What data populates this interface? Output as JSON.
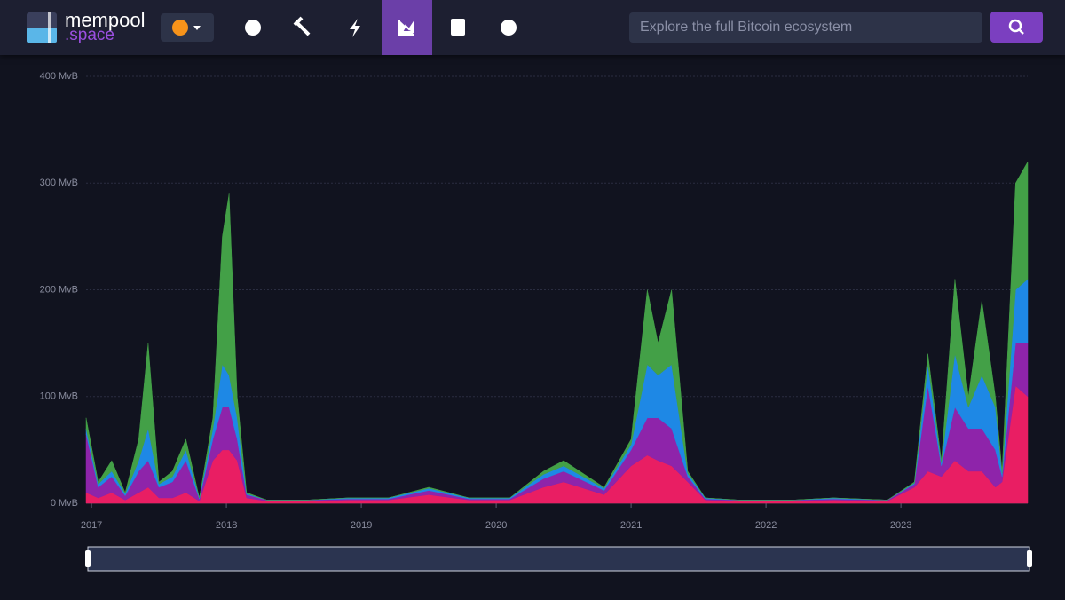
{
  "header": {
    "logo_main": "mempool",
    "logo_sub": ".space",
    "search_placeholder": "Explore the full Bitcoin ecosystem"
  },
  "chart_data": {
    "type": "stacked-area",
    "x": [
      2016.96,
      2017.05,
      2017.15,
      2017.25,
      2017.35,
      2017.42,
      2017.5,
      2017.6,
      2017.7,
      2017.8,
      2017.9,
      2017.97,
      2018.02,
      2018.08,
      2018.15,
      2018.3,
      2018.6,
      2018.9,
      2019.2,
      2019.5,
      2019.8,
      2020.1,
      2020.35,
      2020.5,
      2020.8,
      2021.0,
      2021.12,
      2021.2,
      2021.3,
      2021.42,
      2021.55,
      2021.8,
      2022.2,
      2022.5,
      2022.9,
      2023.1,
      2023.2,
      2023.3,
      2023.4,
      2023.5,
      2023.6,
      2023.7,
      2023.75,
      2023.85,
      2023.94
    ],
    "series": [
      {
        "color": "#e91e63",
        "values": [
          10,
          5,
          10,
          3,
          10,
          15,
          5,
          5,
          10,
          2,
          40,
          50,
          50,
          40,
          5,
          2,
          2,
          3,
          3,
          8,
          3,
          3,
          15,
          20,
          8,
          35,
          45,
          40,
          35,
          20,
          3,
          2,
          2,
          3,
          2,
          15,
          30,
          25,
          40,
          30,
          30,
          15,
          20,
          110,
          100
        ]
      },
      {
        "color": "#8e24aa",
        "values": [
          55,
          10,
          15,
          4,
          20,
          25,
          10,
          15,
          30,
          2,
          20,
          40,
          40,
          20,
          3,
          1,
          1,
          1,
          1,
          4,
          1,
          1,
          8,
          10,
          4,
          15,
          35,
          40,
          35,
          5,
          1,
          1,
          1,
          1,
          1,
          3,
          80,
          10,
          50,
          40,
          40,
          35,
          5,
          40,
          50
        ]
      },
      {
        "color": "#1e88e5",
        "values": [
          5,
          3,
          5,
          2,
          10,
          30,
          3,
          5,
          10,
          1,
          10,
          40,
          30,
          20,
          1,
          0,
          0,
          1,
          1,
          2,
          1,
          1,
          4,
          5,
          2,
          5,
          50,
          40,
          60,
          3,
          1,
          0,
          0,
          1,
          0,
          1,
          20,
          3,
          50,
          20,
          50,
          40,
          3,
          50,
          60
        ]
      },
      {
        "color": "#43a047",
        "values": [
          10,
          2,
          10,
          1,
          20,
          80,
          2,
          5,
          10,
          0,
          10,
          120,
          170,
          20,
          1,
          0,
          0,
          0,
          0,
          1,
          0,
          0,
          3,
          5,
          1,
          5,
          70,
          30,
          70,
          2,
          0,
          0,
          0,
          0,
          0,
          1,
          10,
          2,
          70,
          10,
          70,
          10,
          2,
          100,
          110
        ]
      }
    ],
    "xlim": [
      2016.96,
      2023.94
    ],
    "xticks": [
      2017,
      2018,
      2019,
      2020,
      2021,
      2022,
      2023
    ],
    "ylim": [
      0,
      400
    ],
    "yticks": [
      {
        "value": 0,
        "label": "0 MvB"
      },
      {
        "value": 100,
        "label": "100 MvB"
      },
      {
        "value": 200,
        "label": "200 MvB"
      },
      {
        "value": 300,
        "label": "300 MvB"
      },
      {
        "value": 400,
        "label": "400 MvB"
      }
    ],
    "grid": true
  }
}
